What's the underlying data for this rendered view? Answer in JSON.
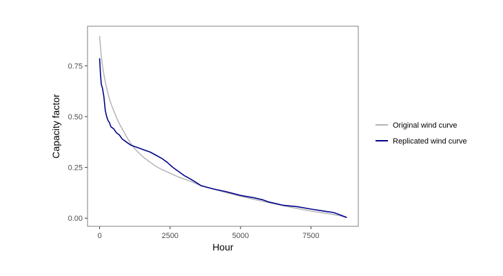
{
  "chart_data": {
    "type": "line",
    "xlabel": "Hour",
    "ylabel": "Capacity factor",
    "xlim": [
      -430,
      9180
    ],
    "ylim": [
      -0.04,
      0.945
    ],
    "xticks": [
      0,
      2500,
      5000,
      7500
    ],
    "xtick_labels": [
      "0",
      "2500",
      "5000",
      "7500"
    ],
    "yticks": [
      0.0,
      0.25,
      0.5,
      0.75
    ],
    "ytick_labels": [
      "0.00",
      "0.25",
      "0.50",
      "0.75"
    ],
    "grid": false,
    "legend_position": "right",
    "series": [
      {
        "name": "Original wind curve",
        "color": "#b3b3b3",
        "x": [
          0,
          50,
          100,
          150,
          200,
          300,
          400,
          500,
          600,
          700,
          800,
          900,
          1000,
          1200,
          1400,
          1600,
          1800,
          2000,
          2200,
          2400,
          2600,
          2800,
          3000,
          3200,
          3500,
          4000,
          4500,
          5000,
          5500,
          6000,
          6500,
          7000,
          7500,
          8000,
          8500,
          8760
        ],
        "y": [
          0.895,
          0.81,
          0.75,
          0.71,
          0.67,
          0.61,
          0.565,
          0.53,
          0.495,
          0.465,
          0.44,
          0.415,
          0.39,
          0.35,
          0.32,
          0.295,
          0.275,
          0.255,
          0.24,
          0.228,
          0.215,
          0.203,
          0.193,
          0.183,
          0.165,
          0.145,
          0.125,
          0.108,
          0.092,
          0.077,
          0.062,
          0.048,
          0.035,
          0.025,
          0.013,
          0.003
        ]
      },
      {
        "name": "Replicated wind curve",
        "color": "#00008b",
        "x": [
          0,
          30,
          60,
          100,
          150,
          200,
          250,
          300,
          350,
          400,
          500,
          600,
          700,
          800,
          900,
          1000,
          1100,
          1200,
          1400,
          1600,
          1800,
          2000,
          2200,
          2400,
          2600,
          2800,
          3000,
          3200,
          3400,
          3600,
          4000,
          4500,
          5000,
          5500,
          5800,
          6000,
          6500,
          7000,
          7500,
          8000,
          8300,
          8500,
          8760
        ],
        "y": [
          0.785,
          0.71,
          0.66,
          0.64,
          0.6,
          0.53,
          0.5,
          0.48,
          0.47,
          0.45,
          0.44,
          0.42,
          0.41,
          0.39,
          0.38,
          0.37,
          0.36,
          0.355,
          0.345,
          0.335,
          0.325,
          0.31,
          0.295,
          0.275,
          0.25,
          0.23,
          0.21,
          0.195,
          0.178,
          0.16,
          0.145,
          0.13,
          0.112,
          0.1,
          0.09,
          0.08,
          0.064,
          0.057,
          0.045,
          0.034,
          0.028,
          0.018,
          0.004
        ]
      }
    ]
  }
}
